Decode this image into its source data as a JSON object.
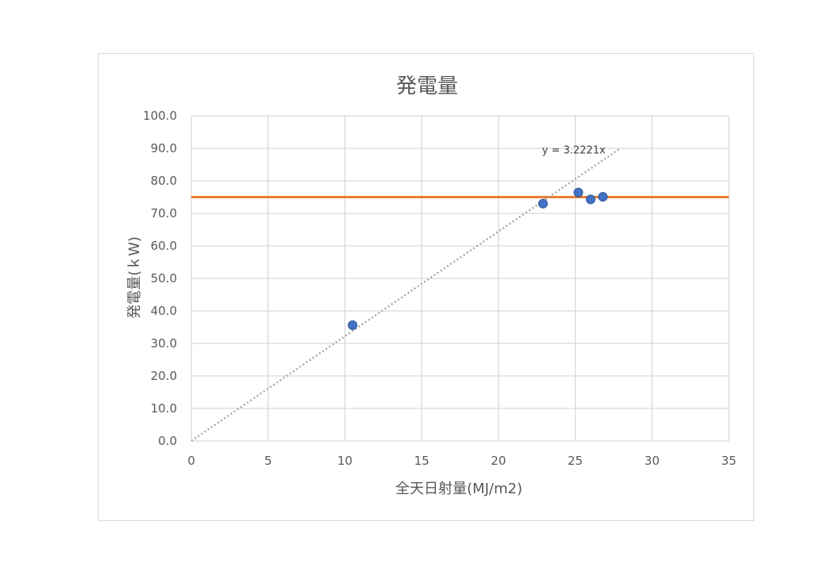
{
  "chart_data": {
    "type": "scatter",
    "title": "発電量",
    "xlabel": "全天日射量(MJ/m2)",
    "ylabel": "発電量(ｋW)",
    "xlim": [
      0,
      35
    ],
    "ylim": [
      0,
      100
    ],
    "x_ticks": [
      "0",
      "5",
      "10",
      "15",
      "20",
      "25",
      "30",
      "35"
    ],
    "y_ticks": [
      "0.0",
      "10.0",
      "20.0",
      "30.0",
      "40.0",
      "50.0",
      "60.0",
      "70.0",
      "80.0",
      "90.0",
      "100.0"
    ],
    "grid": true,
    "series": [
      {
        "type": "scatter",
        "color": "#4472c4",
        "points": [
          {
            "x": 10.5,
            "y": 35.6
          },
          {
            "x": 22.9,
            "y": 73.0
          },
          {
            "x": 25.2,
            "y": 76.4
          },
          {
            "x": 26.0,
            "y": 74.3
          },
          {
            "x": 26.8,
            "y": 75.1
          }
        ]
      }
    ],
    "reference_line": {
      "y": 75,
      "color": "#ed7d31"
    },
    "trendline": {
      "type": "linear",
      "slope": 3.2221,
      "x_range": [
        0,
        27.9
      ],
      "color": "#a6a6a6",
      "equation": "y = 3.2221x"
    }
  }
}
